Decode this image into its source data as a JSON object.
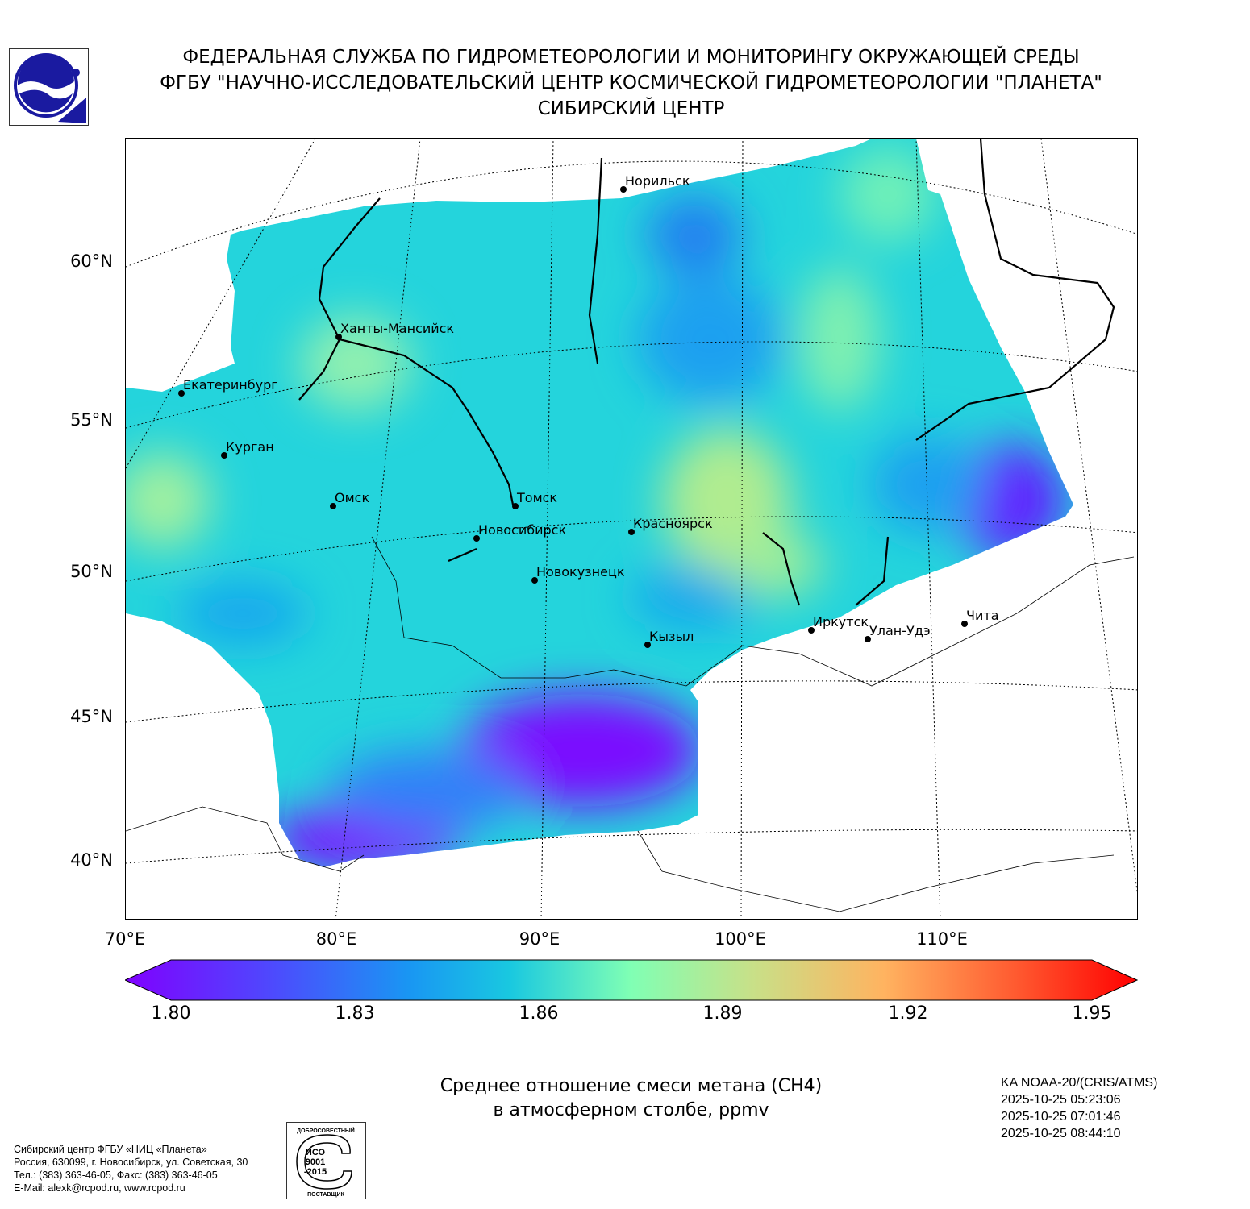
{
  "header": {
    "line1": "ФЕДЕРАЛЬНАЯ СЛУЖБА ПО ГИДРОМЕТЕОРОЛОГИИ И МОНИТОРИНГУ ОКРУЖАЮЩЕЙ СРЕДЫ",
    "line2": "ФГБУ \"НАУЧНО-ИССЛЕДОВАТЕЛЬСКИЙ ЦЕНТР КОСМИЧЕСКОЙ ГИДРОМЕТЕОРОЛОГИИ \"ПЛАНЕТА\"",
    "line3": "СИБИРСКИЙ ЦЕНТР"
  },
  "map": {
    "lat_labels": [
      "60°N",
      "55°N",
      "50°N",
      "45°N",
      "40°N"
    ],
    "lon_labels": [
      "70°E",
      "80°E",
      "90°E",
      "100°E",
      "110°E"
    ],
    "cities": [
      "Норильск",
      "Ханты-Мансийск",
      "Екатеринбург",
      "Курган",
      "Омск",
      "Томск",
      "Новосибирск",
      "Красноярск",
      "Новокузнецк",
      "Иркутск",
      "Улан-Удэ",
      "Чита",
      "Кызыл"
    ]
  },
  "colorbar": {
    "ticks": [
      "1.80",
      "1.83",
      "1.86",
      "1.89",
      "1.92",
      "1.95"
    ],
    "min": 1.8,
    "max": 1.95,
    "colormap": [
      "#8000ff",
      "#4c4cfd",
      "#1996f3",
      "#19c8e0",
      "#4cf2ce",
      "#80ffb4",
      "#b2f396",
      "#e6cd73",
      "#ffb360",
      "#ff7a45",
      "#ff4026",
      "#ff0000"
    ]
  },
  "title": {
    "line1": "Среднее отношение смеси метана (CH4)",
    "line2": "в атмосферном столбе, ppmv"
  },
  "meta": {
    "satellite": "KA NOAA-20/(CRIS/ATMS)",
    "times": [
      "2025-10-25 05:23:06",
      "2025-10-25 07:01:46",
      "2025-10-25 08:44:10"
    ]
  },
  "footer": {
    "lines": [
      "Сибирский центр ФГБУ «НИЦ «Планета»",
      "Россия, 630099, г. Новосибирск, ул. Советская, 30",
      "Тел.: (383) 363-46-05, Факс: (383) 363-46-05",
      "E-Mail: alexk@rcpod.ru, www.rcpod.ru"
    ],
    "iso_top": "ДОБРОСОВЕСТНЫЙ",
    "iso_mid": [
      "ИСО",
      "9001",
      "-2015"
    ],
    "iso_bottom": "ПОСТАВЩИК"
  }
}
